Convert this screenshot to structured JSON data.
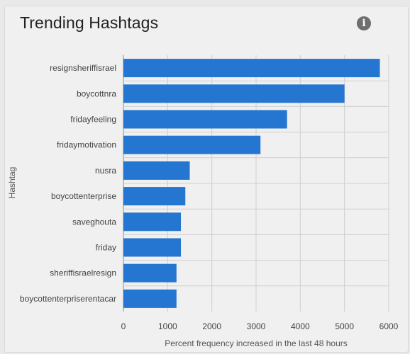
{
  "card": {
    "title": "Trending Hashtags",
    "info_icon": "info-icon",
    "info_glyph": "i"
  },
  "colors": {
    "bar": "#2476d1",
    "grid": "#cfcfcf",
    "text": "#444444"
  },
  "chart_data": {
    "type": "bar",
    "orientation": "horizontal",
    "title": "Trending Hashtags",
    "xlabel": "Percent frequency increased in the last 48 hours",
    "ylabel": "Hashtag",
    "xlim": [
      0,
      6000
    ],
    "xticks": [
      0,
      1000,
      2000,
      3000,
      4000,
      5000,
      6000
    ],
    "grid": true,
    "legend": "none",
    "categories": [
      "resignsheriffisrael",
      "boycottnra",
      "fridayfeeling",
      "fridaymotivation",
      "nusra",
      "boycottenterprise",
      "saveghouta",
      "friday",
      "sheriffisraelresign",
      "boycottenterpriserentacar"
    ],
    "values": [
      5800,
      5000,
      3700,
      3100,
      1500,
      1400,
      1300,
      1300,
      1200,
      1200
    ]
  }
}
